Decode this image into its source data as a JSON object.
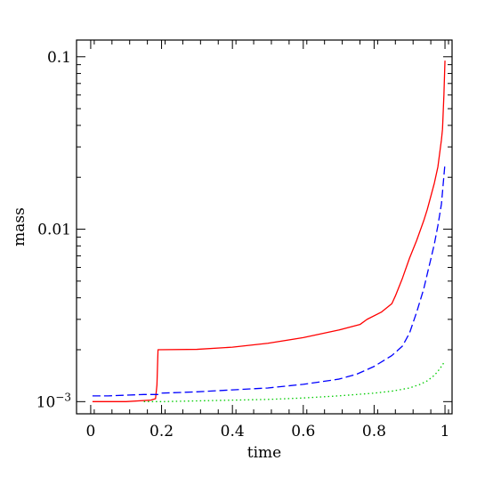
{
  "chart_data": {
    "type": "line",
    "xlabel": "time",
    "ylabel": "mass",
    "xlim": [
      -0.04,
      1.02
    ],
    "ylim": [
      0.00085,
      0.125
    ],
    "yscale": "log",
    "grid": false,
    "x_ticks": [
      {
        "value": 0,
        "label": "0"
      },
      {
        "value": 0.2,
        "label": "0.2"
      },
      {
        "value": 0.4,
        "label": "0.4"
      },
      {
        "value": 0.6,
        "label": "0.6"
      },
      {
        "value": 0.8,
        "label": "0.8"
      },
      {
        "value": 1,
        "label": "1"
      }
    ],
    "y_ticks": [
      {
        "value": 0.001,
        "base": "10",
        "exp": "−3"
      },
      {
        "value": 0.01,
        "label": "0.01"
      },
      {
        "value": 0.1,
        "label": "0.1"
      }
    ],
    "series": [
      {
        "color": "#ff0000",
        "style": "solid",
        "x": [
          0.005,
          0.1,
          0.17,
          0.183,
          0.187,
          0.19,
          0.3,
          0.4,
          0.5,
          0.6,
          0.7,
          0.76,
          0.78,
          0.82,
          0.85,
          0.86,
          0.88,
          0.9,
          0.92,
          0.94,
          0.95,
          0.96,
          0.97,
          0.98,
          0.99,
          0.993,
          0.997,
          1.0
        ],
        "y": [
          0.001,
          0.001,
          0.00102,
          0.00104,
          0.00125,
          0.002,
          0.00201,
          0.00207,
          0.00218,
          0.00235,
          0.0026,
          0.0028,
          0.003,
          0.0033,
          0.0037,
          0.0041,
          0.0052,
          0.0068,
          0.0086,
          0.0112,
          0.013,
          0.0155,
          0.0185,
          0.023,
          0.033,
          0.038,
          0.06,
          0.095
        ]
      },
      {
        "color": "#0000ff",
        "style": "dashed",
        "x": [
          0.005,
          0.05,
          0.1,
          0.15,
          0.19,
          0.2,
          0.3,
          0.4,
          0.5,
          0.6,
          0.7,
          0.75,
          0.8,
          0.85,
          0.88,
          0.9,
          0.92,
          0.94,
          0.95,
          0.96,
          0.97,
          0.98,
          0.99,
          1.0
        ],
        "y": [
          0.00108,
          0.00108,
          0.00109,
          0.0011,
          0.0011,
          0.00112,
          0.00114,
          0.00117,
          0.0012,
          0.00126,
          0.00135,
          0.00144,
          0.0016,
          0.00185,
          0.0021,
          0.0025,
          0.0033,
          0.0045,
          0.0055,
          0.0067,
          0.0082,
          0.0105,
          0.014,
          0.024
        ]
      },
      {
        "color": "#00cc00",
        "style": "dotted",
        "x": [
          0.15,
          0.2,
          0.3,
          0.4,
          0.5,
          0.6,
          0.7,
          0.8,
          0.85,
          0.9,
          0.93,
          0.95,
          0.97,
          0.98,
          0.99,
          1.0
        ],
        "y": [
          0.001,
          0.001,
          0.00101,
          0.00102,
          0.00103,
          0.00105,
          0.00108,
          0.00112,
          0.00115,
          0.0012,
          0.00126,
          0.00132,
          0.00142,
          0.0015,
          0.0016,
          0.00172
        ]
      }
    ]
  }
}
